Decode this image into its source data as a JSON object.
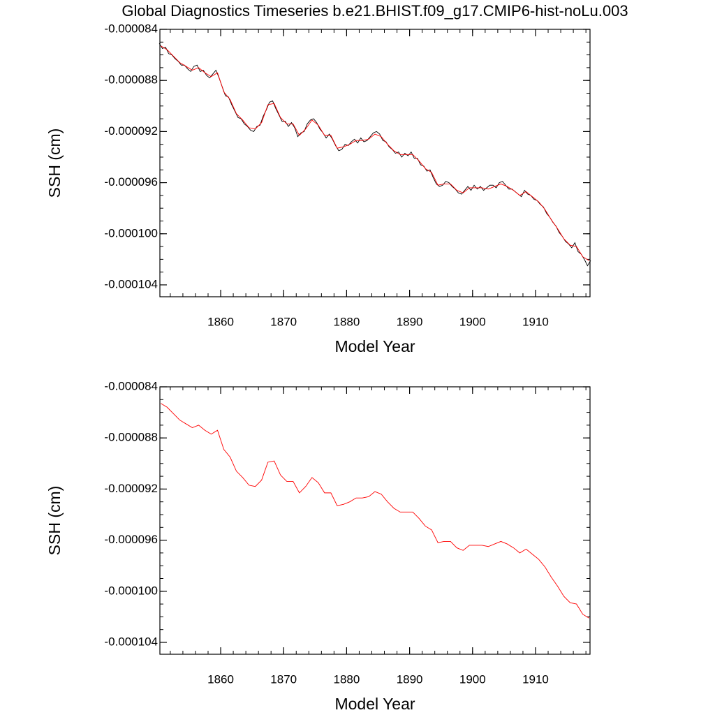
{
  "chart_data": [
    {
      "type": "line",
      "title": "Global Diagnostics Timeseries b.e21.BHIST.f09_g17.CMIP6-hist-noLu.003",
      "xlabel": "Model Year",
      "ylabel": "SSH (cm)",
      "xlim": [
        1850.35,
        1918.65
      ],
      "xticks": [
        1860,
        1870,
        1880,
        1890,
        1900,
        1910
      ],
      "ylim": [
        -0.00010493,
        -8.4e-05
      ],
      "yticks": [
        {
          "value": -8.4e-05,
          "label": "-0.000084"
        },
        {
          "value": -8.8e-05,
          "label": "-0.000088"
        },
        {
          "value": -9.2e-05,
          "label": "-0.000092"
        },
        {
          "value": -9.6e-05,
          "label": "-0.000096"
        },
        {
          "value": -0.0001,
          "label": "-0.000100"
        },
        {
          "value": -0.000104,
          "label": "-0.000104"
        }
      ],
      "grid": false,
      "series": [
        {
          "color": "#000000",
          "x": [
            1850.25,
            1850.75,
            1851.25,
            1851.75,
            1852.25,
            1852.75,
            1853.25,
            1853.75,
            1854.25,
            1854.75,
            1855.25,
            1855.75,
            1856.25,
            1856.75,
            1857.25,
            1857.75,
            1858.25,
            1858.75,
            1859.25,
            1859.75,
            1860.25,
            1860.75,
            1861.25,
            1861.75,
            1862.25,
            1862.75,
            1863.25,
            1863.75,
            1864.25,
            1864.75,
            1865.25,
            1865.75,
            1866.25,
            1866.75,
            1867.25,
            1867.75,
            1868.25,
            1868.75,
            1869.25,
            1869.75,
            1870.25,
            1870.75,
            1871.25,
            1871.75,
            1872.25,
            1872.75,
            1873.25,
            1873.75,
            1874.25,
            1874.75,
            1875.25,
            1875.75,
            1876.25,
            1876.75,
            1877.25,
            1877.75,
            1878.25,
            1878.75,
            1879.25,
            1879.75,
            1880.25,
            1880.75,
            1881.25,
            1881.75,
            1882.25,
            1882.75,
            1883.25,
            1883.75,
            1884.25,
            1884.75,
            1885.25,
            1885.75,
            1886.25,
            1886.75,
            1887.25,
            1887.75,
            1888.25,
            1888.75,
            1889.25,
            1889.75,
            1890.25,
            1890.75,
            1891.25,
            1891.75,
            1892.25,
            1892.75,
            1893.25,
            1893.75,
            1894.25,
            1894.75,
            1895.25,
            1895.75,
            1896.25,
            1896.75,
            1897.25,
            1897.75,
            1898.25,
            1898.75,
            1899.25,
            1899.75,
            1900.25,
            1900.75,
            1901.25,
            1901.75,
            1902.25,
            1902.75,
            1903.25,
            1903.75,
            1904.25,
            1904.75,
            1905.25,
            1905.75,
            1906.25,
            1906.75,
            1907.25,
            1907.75,
            1908.25,
            1908.75,
            1909.25,
            1909.75,
            1910.25,
            1910.75,
            1911.25,
            1911.75,
            1912.25,
            1912.75,
            1913.25,
            1913.75,
            1914.25,
            1914.75,
            1915.25,
            1915.75,
            1916.25,
            1916.75,
            1917.25,
            1917.75,
            1918.25,
            1918.75
          ],
          "values": [
            -8.51e-05,
            -8.55e-05,
            -8.54e-05,
            -8.59e-05,
            -8.6e-05,
            -8.63e-05,
            -8.65e-05,
            -8.68e-05,
            -8.68e-05,
            -8.71e-05,
            -8.73e-05,
            -8.69e-05,
            -8.68e-05,
            -8.73e-05,
            -8.72e-05,
            -8.76e-05,
            -8.78e-05,
            -8.75e-05,
            -8.72e-05,
            -8.78e-05,
            -8.85e-05,
            -8.92e-05,
            -8.93e-05,
            -8.99e-05,
            -9.04e-05,
            -9.09e-05,
            -9.1e-05,
            -9.14e-05,
            -9.16e-05,
            -9.19e-05,
            -9.2e-05,
            -9.16e-05,
            -9.15e-05,
            -9.08e-05,
            -9.03e-05,
            -8.97e-05,
            -8.96e-05,
            -9.02e-05,
            -9.07e-05,
            -9.12e-05,
            -9.12e-05,
            -9.16e-05,
            -9.13e-05,
            -9.17e-05,
            -9.24e-05,
            -9.21e-05,
            -9.2e-05,
            -9.14e-05,
            -9.11e-05,
            -9.1e-05,
            -9.13e-05,
            -9.18e-05,
            -9.21e-05,
            -9.25e-05,
            -9.22e-05,
            -9.26e-05,
            -9.31e-05,
            -9.35e-05,
            -9.34e-05,
            -9.3e-05,
            -9.31e-05,
            -9.28e-05,
            -9.26e-05,
            -9.29e-05,
            -9.25e-05,
            -9.28e-05,
            -9.27e-05,
            -9.24e-05,
            -9.21e-05,
            -9.2e-05,
            -9.22e-05,
            -9.27e-05,
            -9.28e-05,
            -9.32e-05,
            -9.34e-05,
            -9.37e-05,
            -9.36e-05,
            -9.4e-05,
            -9.37e-05,
            -9.39e-05,
            -9.36e-05,
            -9.41e-05,
            -9.41e-05,
            -9.46e-05,
            -9.47e-05,
            -9.51e-05,
            -9.5e-05,
            -9.56e-05,
            -9.61e-05,
            -9.63e-05,
            -9.62e-05,
            -9.59e-05,
            -9.6e-05,
            -9.63e-05,
            -9.65e-05,
            -9.68e-05,
            -9.69e-05,
            -9.66e-05,
            -9.63e-05,
            -9.66e-05,
            -9.62e-05,
            -9.65e-05,
            -9.63e-05,
            -9.66e-05,
            -9.64e-05,
            -9.62e-05,
            -9.62e-05,
            -9.64e-05,
            -9.6e-05,
            -9.59e-05,
            -9.62e-05,
            -9.65e-05,
            -9.65e-05,
            -9.67e-05,
            -9.69e-05,
            -9.71e-05,
            -9.66e-05,
            -9.69e-05,
            -9.7e-05,
            -9.73e-05,
            -9.74e-05,
            -9.77e-05,
            -9.79e-05,
            -9.84e-05,
            -9.87e-05,
            -9.91e-05,
            -9.94e-05,
            -9.99e-05,
            -0.0001002,
            -0.0001006,
            -0.0001008,
            -0.0001011,
            -0.0001007,
            -0.0001014,
            -0.0001016,
            -0.000102,
            -0.0001025,
            -0.0001021
          ]
        },
        {
          "color": "#ff0000",
          "x": [
            1850.5,
            1851.5,
            1852.5,
            1853.5,
            1854.5,
            1855.5,
            1856.5,
            1857.5,
            1858.5,
            1859.5,
            1860.5,
            1861.5,
            1862.5,
            1863.5,
            1864.5,
            1865.5,
            1866.5,
            1867.5,
            1868.5,
            1869.5,
            1870.5,
            1871.5,
            1872.5,
            1873.5,
            1874.5,
            1875.5,
            1876.5,
            1877.5,
            1878.5,
            1879.5,
            1880.5,
            1881.5,
            1882.5,
            1883.5,
            1884.5,
            1885.5,
            1886.5,
            1887.5,
            1888.5,
            1889.5,
            1890.5,
            1891.5,
            1892.5,
            1893.5,
            1894.5,
            1895.5,
            1896.5,
            1897.5,
            1898.5,
            1899.5,
            1900.5,
            1901.5,
            1902.5,
            1903.5,
            1904.5,
            1905.5,
            1906.5,
            1907.5,
            1908.5,
            1909.5,
            1910.5,
            1911.5,
            1912.5,
            1913.5,
            1914.5,
            1915.5,
            1916.5,
            1917.5,
            1918.5
          ],
          "values": [
            -8.53e-05,
            -8.56e-05,
            -8.61e-05,
            -8.66e-05,
            -8.69e-05,
            -8.72e-05,
            -8.7e-05,
            -8.74e-05,
            -8.77e-05,
            -8.74e-05,
            -8.89e-05,
            -8.95e-05,
            -9.06e-05,
            -9.11e-05,
            -9.17e-05,
            -9.18e-05,
            -9.13e-05,
            -8.99e-05,
            -8.98e-05,
            -9.09e-05,
            -9.14e-05,
            -9.14e-05,
            -9.23e-05,
            -9.18e-05,
            -9.11e-05,
            -9.15e-05,
            -9.23e-05,
            -9.23e-05,
            -9.33e-05,
            -9.32e-05,
            -9.3e-05,
            -9.27e-05,
            -9.27e-05,
            -9.26e-05,
            -9.22e-05,
            -9.24e-05,
            -9.3e-05,
            -9.35e-05,
            -9.38e-05,
            -9.38e-05,
            -9.38e-05,
            -9.43e-05,
            -9.49e-05,
            -9.52e-05,
            -9.62e-05,
            -9.61e-05,
            -9.61e-05,
            -9.66e-05,
            -9.68e-05,
            -9.64e-05,
            -9.64e-05,
            -9.64e-05,
            -9.65e-05,
            -9.63e-05,
            -9.61e-05,
            -9.63e-05,
            -9.66e-05,
            -9.7e-05,
            -9.67e-05,
            -9.71e-05,
            -9.75e-05,
            -9.81e-05,
            -9.89e-05,
            -9.96e-05,
            -0.0001004,
            -0.0001009,
            -0.000101,
            -0.0001018,
            -0.0001021
          ]
        }
      ]
    },
    {
      "type": "line",
      "xlabel": "Model Year",
      "ylabel": "SSH (cm)",
      "xlim": [
        1850.35,
        1918.65
      ],
      "xticks": [
        1860,
        1870,
        1880,
        1890,
        1900,
        1910
      ],
      "ylim": [
        -0.00010493,
        -8.4e-05
      ],
      "yticks": [
        {
          "value": -8.4e-05,
          "label": "-0.000084"
        },
        {
          "value": -8.8e-05,
          "label": "-0.000088"
        },
        {
          "value": -9.2e-05,
          "label": "-0.000092"
        },
        {
          "value": -9.6e-05,
          "label": "-0.000096"
        },
        {
          "value": -0.0001,
          "label": "-0.000100"
        },
        {
          "value": -0.000104,
          "label": "-0.000104"
        }
      ],
      "grid": false,
      "series": [
        {
          "color": "#ff0000",
          "x": [
            1850.5,
            1851.5,
            1852.5,
            1853.5,
            1854.5,
            1855.5,
            1856.5,
            1857.5,
            1858.5,
            1859.5,
            1860.5,
            1861.5,
            1862.5,
            1863.5,
            1864.5,
            1865.5,
            1866.5,
            1867.5,
            1868.5,
            1869.5,
            1870.5,
            1871.5,
            1872.5,
            1873.5,
            1874.5,
            1875.5,
            1876.5,
            1877.5,
            1878.5,
            1879.5,
            1880.5,
            1881.5,
            1882.5,
            1883.5,
            1884.5,
            1885.5,
            1886.5,
            1887.5,
            1888.5,
            1889.5,
            1890.5,
            1891.5,
            1892.5,
            1893.5,
            1894.5,
            1895.5,
            1896.5,
            1897.5,
            1898.5,
            1899.5,
            1900.5,
            1901.5,
            1902.5,
            1903.5,
            1904.5,
            1905.5,
            1906.5,
            1907.5,
            1908.5,
            1909.5,
            1910.5,
            1911.5,
            1912.5,
            1913.5,
            1914.5,
            1915.5,
            1916.5,
            1917.5,
            1918.5
          ],
          "values": [
            -8.53e-05,
            -8.56e-05,
            -8.61e-05,
            -8.66e-05,
            -8.69e-05,
            -8.72e-05,
            -8.7e-05,
            -8.74e-05,
            -8.77e-05,
            -8.74e-05,
            -8.89e-05,
            -8.95e-05,
            -9.06e-05,
            -9.11e-05,
            -9.17e-05,
            -9.18e-05,
            -9.13e-05,
            -8.99e-05,
            -8.98e-05,
            -9.09e-05,
            -9.14e-05,
            -9.14e-05,
            -9.23e-05,
            -9.18e-05,
            -9.11e-05,
            -9.15e-05,
            -9.23e-05,
            -9.23e-05,
            -9.33e-05,
            -9.32e-05,
            -9.3e-05,
            -9.27e-05,
            -9.27e-05,
            -9.26e-05,
            -9.22e-05,
            -9.24e-05,
            -9.3e-05,
            -9.35e-05,
            -9.38e-05,
            -9.38e-05,
            -9.38e-05,
            -9.43e-05,
            -9.49e-05,
            -9.52e-05,
            -9.62e-05,
            -9.61e-05,
            -9.61e-05,
            -9.66e-05,
            -9.68e-05,
            -9.64e-05,
            -9.64e-05,
            -9.64e-05,
            -9.65e-05,
            -9.63e-05,
            -9.61e-05,
            -9.63e-05,
            -9.66e-05,
            -9.7e-05,
            -9.67e-05,
            -9.71e-05,
            -9.75e-05,
            -9.81e-05,
            -9.89e-05,
            -9.96e-05,
            -0.0001004,
            -0.0001009,
            -0.000101,
            -0.0001018,
            -0.0001021
          ]
        }
      ]
    }
  ]
}
